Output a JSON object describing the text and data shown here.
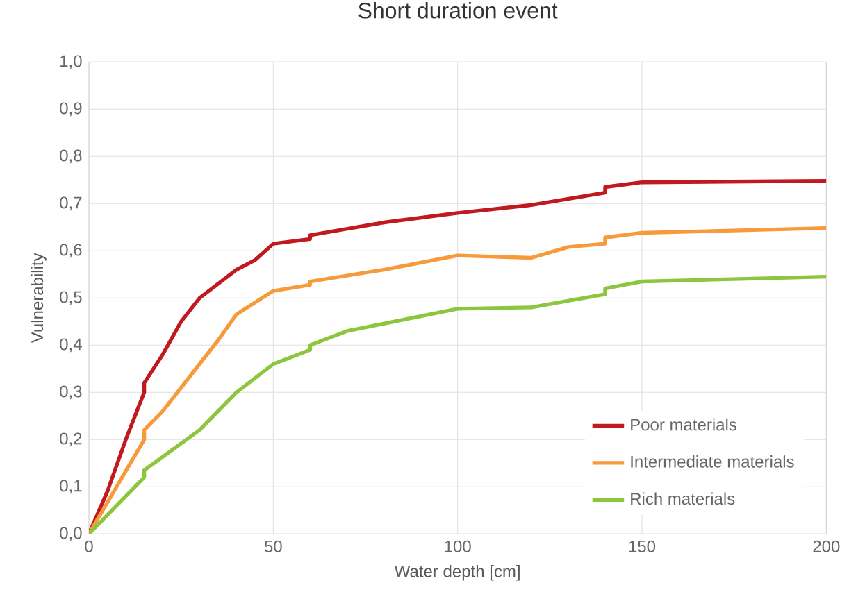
{
  "chart_data": {
    "type": "line",
    "title": "Short duration event",
    "xlabel": "Water depth [cm]",
    "ylabel": "Vulnerability",
    "xlim": [
      0,
      200
    ],
    "xticks": [
      0,
      50,
      100,
      150,
      200
    ],
    "ylim": [
      0,
      1
    ],
    "yticks": [
      {
        "value": 0,
        "label": "0,0"
      },
      {
        "value": 0.1,
        "label": "0,1"
      },
      {
        "value": 0.2,
        "label": "0,2"
      },
      {
        "value": 0.3,
        "label": "0,3"
      },
      {
        "value": 0.4,
        "label": "0,4"
      },
      {
        "value": 0.5,
        "label": "0,5"
      },
      {
        "value": 0.6,
        "label": "0,6"
      },
      {
        "value": 0.7,
        "label": "0,7"
      },
      {
        "value": 0.8,
        "label": "0,8"
      },
      {
        "value": 0.9,
        "label": "0,9"
      },
      {
        "value": 1,
        "label": "1,0"
      }
    ],
    "grid": true,
    "legend": "bottom right",
    "marker": "none",
    "line_style": "solid",
    "series": [
      {
        "name": "Poor materials",
        "color": "#c0191f",
        "x": [
          0,
          5,
          10,
          15,
          15,
          20,
          25,
          30,
          35,
          40,
          45,
          50,
          60,
          60,
          80,
          100,
          120,
          140,
          140,
          150,
          200
        ],
        "values": [
          0,
          0.09,
          0.2,
          0.3,
          0.32,
          0.38,
          0.45,
          0.5,
          0.53,
          0.56,
          0.58,
          0.615,
          0.625,
          0.633,
          0.66,
          0.68,
          0.697,
          0.723,
          0.735,
          0.745,
          0.748
        ]
      },
      {
        "name": "Intermediate materials",
        "color": "#f79a3a",
        "x": [
          0,
          15,
          15,
          20,
          25,
          30,
          35,
          40,
          45,
          50,
          60,
          60,
          80,
          100,
          120,
          130,
          140,
          140,
          150,
          200
        ],
        "values": [
          0,
          0.2,
          0.22,
          0.26,
          0.31,
          0.36,
          0.41,
          0.465,
          0.49,
          0.515,
          0.528,
          0.535,
          0.56,
          0.59,
          0.585,
          0.608,
          0.615,
          0.628,
          0.638,
          0.648
        ]
      },
      {
        "name": "Rich materials",
        "color": "#8cc63f",
        "x": [
          0,
          15,
          15,
          30,
          40,
          50,
          60,
          60,
          70,
          100,
          120,
          140,
          140,
          150,
          200
        ],
        "values": [
          0,
          0.12,
          0.135,
          0.22,
          0.3,
          0.36,
          0.39,
          0.4,
          0.43,
          0.477,
          0.48,
          0.508,
          0.52,
          0.535,
          0.545
        ]
      }
    ]
  }
}
